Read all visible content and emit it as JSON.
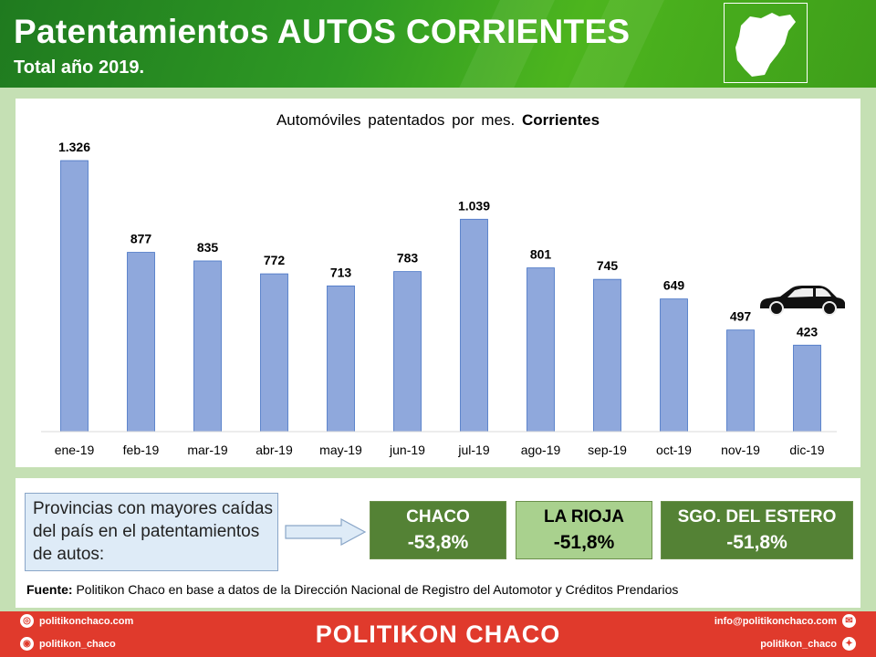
{
  "header": {
    "title": "Patentamientos AUTOS CORRIENTES",
    "subtitle": "Total año 2019."
  },
  "chart_data": {
    "type": "bar",
    "title_prefix": "Automóviles  patentados  por  mes.",
    "title_bold": "Corrientes",
    "categories": [
      "ene-19",
      "feb-19",
      "mar-19",
      "abr-19",
      "may-19",
      "jun-19",
      "jul-19",
      "ago-19",
      "sep-19",
      "oct-19",
      "nov-19",
      "dic-19"
    ],
    "values": [
      1326,
      877,
      835,
      772,
      713,
      783,
      1039,
      801,
      745,
      649,
      497,
      423
    ],
    "value_labels": [
      "1.326",
      "877",
      "835",
      "772",
      "713",
      "783",
      "1.039",
      "801",
      "745",
      "649",
      "497",
      "423"
    ],
    "ylim": [
      0,
      1326
    ],
    "grid": false,
    "bar_color": "#8fa8dc"
  },
  "info": {
    "callout": "Provincias con mayores caídas del país en el patentamientos  de autos:",
    "provinces": [
      {
        "name": "CHACO",
        "pct": "-53,8%"
      },
      {
        "name": "LA RIOJA",
        "pct": "-51,8%"
      },
      {
        "name": "SGO. DEL ESTERO",
        "pct": "-51,8%"
      }
    ],
    "source_label": "Fuente:",
    "source_text": " Politikon Chaco en base a datos de la Dirección Nacional de Registro del Automotor  y Créditos Prendarios"
  },
  "footer": {
    "brand": "POLITIKON CHACO",
    "website": "politikonchaco.com",
    "instagram": "politikon_chaco",
    "email": "info@politikonchaco.com",
    "twitter": "politikon_chaco"
  },
  "colors": {
    "header_green": "#2f9a24",
    "dark_green": "#548235",
    "light_green": "#a9d18e",
    "footer_red": "#e03a2c"
  }
}
